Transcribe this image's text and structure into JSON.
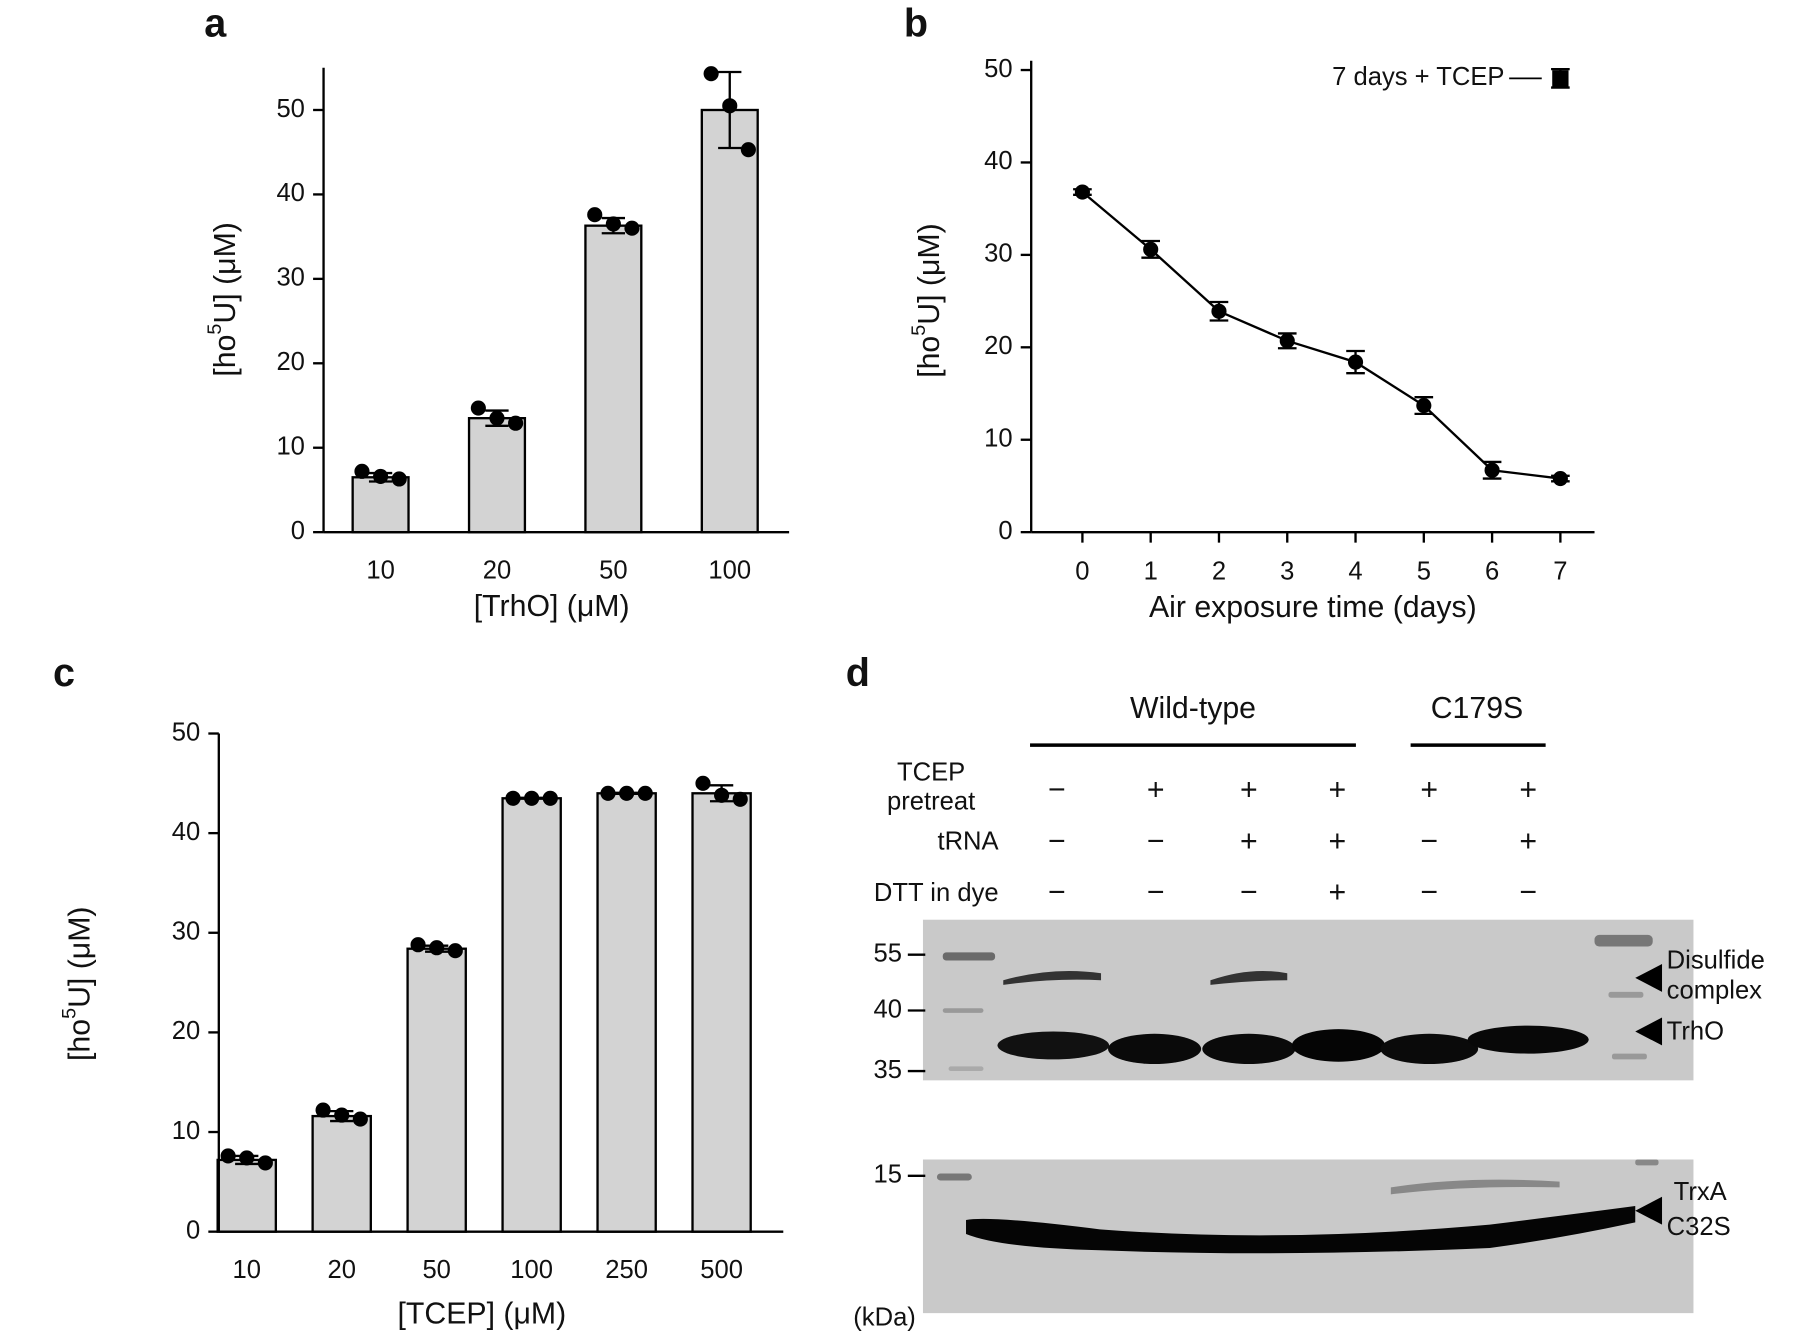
{
  "chart_data": [
    {
      "type": "bar",
      "panel_label": "a",
      "xlabel": "[TrhO] (μM)",
      "ylabel": [
        "[ho",
        "5",
        "U] (μM)"
      ],
      "categories": [
        "10",
        "20",
        "50",
        "100"
      ],
      "values": [
        6.5,
        13.5,
        36.3,
        50.0
      ],
      "errors": [
        0.5,
        0.9,
        0.9,
        4.5
      ],
      "replicates": [
        [
          7.2,
          6.6,
          6.3
        ],
        [
          14.7,
          13.5,
          12.9
        ],
        [
          37.6,
          36.5,
          36.0
        ],
        [
          54.3,
          50.5,
          45.3
        ]
      ],
      "color": "#d3d3d3",
      "ylim": [
        0,
        55
      ],
      "yticks": [
        0,
        10,
        20,
        30,
        40,
        50
      ]
    },
    {
      "type": "line",
      "panel_label": "b",
      "xlabel": "Air exposure time (days)",
      "ylabel": [
        "[ho",
        "5",
        "U] (μM)"
      ],
      "series": [
        {
          "color": "#000000",
          "marker": "circle",
          "x": [
            0,
            1,
            2,
            3,
            4,
            5,
            6,
            7
          ],
          "values": [
            36.8,
            30.6,
            23.9,
            20.7,
            18.4,
            13.7,
            6.7,
            5.8
          ],
          "errors": [
            0.3,
            0.9,
            1.0,
            0.8,
            1.2,
            0.9,
            0.9,
            0.3
          ]
        },
        {
          "name": "7 days + TCEP",
          "color": "#000000",
          "marker": "square",
          "x": [
            7
          ],
          "values": [
            49.1
          ],
          "errors": [
            1.0
          ]
        }
      ],
      "xlim": [
        -0.75,
        7.5
      ],
      "xticks": [
        0,
        1,
        2,
        3,
        4,
        5,
        6,
        7
      ],
      "ylim": [
        0,
        51
      ],
      "yticks": [
        0,
        10,
        20,
        30,
        40,
        50
      ]
    },
    {
      "type": "bar",
      "panel_label": "c",
      "xlabel": "[TCEP] (μM)",
      "ylabel": [
        "[ho",
        "5",
        "U] (μM)"
      ],
      "categories": [
        "10",
        "20",
        "50",
        "100",
        "250",
        "500"
      ],
      "values": [
        7.2,
        11.6,
        28.4,
        43.5,
        44.0,
        44.0
      ],
      "errors": [
        0.4,
        0.5,
        0.3,
        0.05,
        0.05,
        0.8
      ],
      "replicates": [
        [
          7.6,
          7.4,
          6.9
        ],
        [
          12.2,
          11.7,
          11.3
        ],
        [
          28.8,
          28.5,
          28.2
        ],
        [
          43.5,
          43.5,
          43.5
        ],
        [
          44.0,
          44.0,
          44.0
        ],
        [
          45.0,
          43.8,
          43.4
        ]
      ],
      "color": "#d3d3d3",
      "ylim": [
        0,
        50
      ],
      "yticks": [
        0,
        10,
        20,
        30,
        40,
        50
      ]
    }
  ],
  "gel": {
    "panel_label": "d",
    "groups": [
      "Wild-type",
      "C179S"
    ],
    "rows": [
      {
        "label": [
          "TCEP",
          "pretreat"
        ],
        "signs": [
          "−",
          "+",
          "+",
          "+",
          "+",
          "+"
        ]
      },
      {
        "label": [
          "tRNA"
        ],
        "signs": [
          "−",
          "−",
          "+",
          "+",
          "−",
          "+"
        ]
      },
      {
        "label": [
          "DTT in dye"
        ],
        "signs": [
          "−",
          "−",
          "−",
          "+",
          "−",
          "−"
        ]
      }
    ],
    "markers": [
      "55",
      "40",
      "35",
      "15"
    ],
    "unit": "(kDa)",
    "bands": [
      [
        "Disulfide",
        "complex"
      ],
      [
        "TrhO"
      ],
      [
        "TrxA",
        "C32S"
      ]
    ]
  }
}
